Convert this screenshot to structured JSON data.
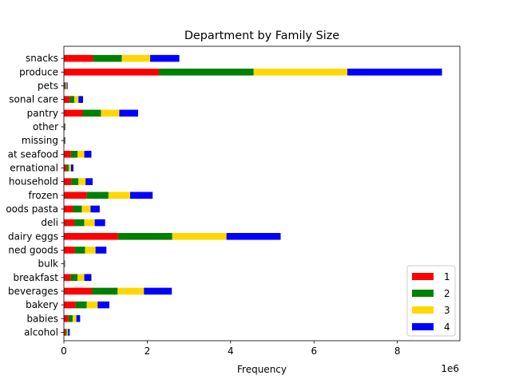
{
  "chart_data": {
    "type": "bar",
    "orientation": "horizontal",
    "stacked": true,
    "title": "Department by Family Size",
    "xlabel": "Frequency",
    "ylabel": "",
    "x_offset_label": "1e6",
    "xlim": [
      0,
      9500000
    ],
    "xticks": [
      0,
      2000000,
      4000000,
      6000000,
      8000000
    ],
    "xtick_labels": [
      "0",
      "2",
      "4",
      "6",
      "8"
    ],
    "grid": false,
    "legend_position": "lower-right",
    "categories": [
      "alcohol",
      "babies",
      "bakery",
      "beverages",
      "breakfast",
      "bulk",
      "canned goods",
      "dairy eggs",
      "deli",
      "dry goods pasta",
      "frozen",
      "household",
      "international",
      "meat seafood",
      "missing",
      "other",
      "pantry",
      "personal care",
      "pets",
      "produce",
      "snacks"
    ],
    "category_labels_visible": [
      "alcohol",
      "babies",
      "bakery",
      "beverages",
      "breakfast",
      "bulk",
      "ned goods",
      "dairy eggs",
      "deli",
      "oods pasta",
      "frozen",
      "household",
      "ernational",
      "at seafood",
      "missing",
      "other",
      "pantry",
      "sonal care",
      "pets",
      "produce",
      "snacks"
    ],
    "series": [
      {
        "name": "1",
        "color": "#ff0000",
        "values": [
          40000,
          110000,
          280000,
          670000,
          170000,
          8000,
          260000,
          1300000,
          250000,
          220000,
          550000,
          180000,
          60000,
          170000,
          10000,
          10000,
          450000,
          140000,
          25000,
          2280000,
          700000
        ]
      },
      {
        "name": "2",
        "color": "#008000",
        "values": [
          30000,
          100000,
          270000,
          620000,
          160000,
          8000,
          250000,
          1300000,
          240000,
          210000,
          520000,
          170000,
          60000,
          160000,
          10000,
          10000,
          440000,
          110000,
          25000,
          2270000,
          690000
        ]
      },
      {
        "name": "3",
        "color": "#ffd700",
        "values": [
          30000,
          90000,
          260000,
          630000,
          160000,
          7000,
          250000,
          1300000,
          250000,
          210000,
          520000,
          170000,
          50000,
          160000,
          10000,
          10000,
          440000,
          100000,
          20000,
          2250000,
          680000
        ]
      },
      {
        "name": "4",
        "color": "#0000ff",
        "values": [
          40000,
          90000,
          280000,
          670000,
          170000,
          7000,
          260000,
          1300000,
          250000,
          220000,
          540000,
          170000,
          60000,
          170000,
          10000,
          10000,
          450000,
          110000,
          20000,
          2270000,
          700000
        ]
      }
    ]
  }
}
